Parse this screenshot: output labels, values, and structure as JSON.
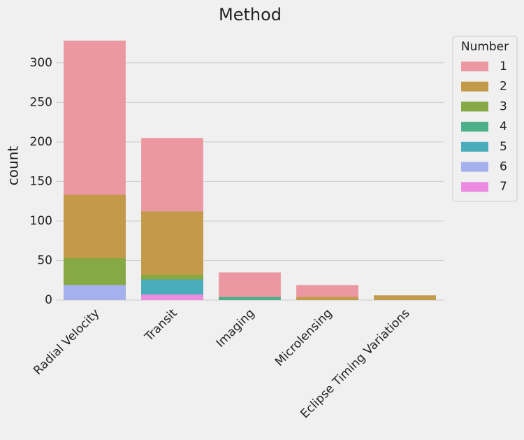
{
  "chart_data": {
    "type": "bar",
    "title": "Method",
    "y_label": "count",
    "legend_title": "Number",
    "categories": [
      "Radial Velocity",
      "Transit",
      "Imaging",
      "Microlensing",
      "Eclipse Timing Variations"
    ],
    "series": [
      {
        "name": "1",
        "color": "#eb98a2",
        "values": [
          328,
          205,
          35,
          19,
          null
        ]
      },
      {
        "name": "2",
        "color": "#c29a49",
        "values": [
          133,
          112,
          null,
          4,
          6
        ]
      },
      {
        "name": "3",
        "color": "#86a845",
        "values": [
          53,
          32,
          null,
          null,
          null
        ]
      },
      {
        "name": "4",
        "color": "#4caf8a",
        "values": [
          null,
          null,
          4,
          null,
          null
        ]
      },
      {
        "name": "5",
        "color": "#4bacbc",
        "values": [
          null,
          26,
          null,
          null,
          null
        ]
      },
      {
        "name": "6",
        "color": "#a5b1ef",
        "values": [
          19,
          null,
          null,
          null,
          null
        ]
      },
      {
        "name": "7",
        "color": "#ec8ce0",
        "values": [
          null,
          7,
          null,
          null,
          null
        ]
      }
    ],
    "ylim": [
      0,
      344
    ],
    "yticks": [
      0,
      50,
      100,
      150,
      200,
      250,
      300
    ],
    "grid": true,
    "legend_position": "outside right"
  }
}
